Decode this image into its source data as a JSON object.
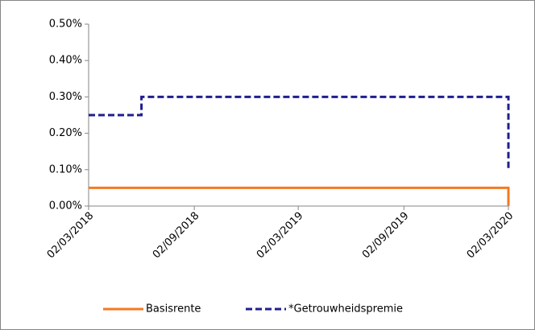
{
  "chart_data": {
    "type": "line",
    "xlim": [
      "02/03/2018",
      "02/03/2020"
    ],
    "xticks": [
      "02/03/2018",
      "02/09/2018",
      "02/03/2019",
      "02/09/2019",
      "02/03/2020"
    ],
    "ylim": [
      0,
      0.5
    ],
    "yticks": [
      {
        "value": 0,
        "label": "0.00%"
      },
      {
        "value": 0.1,
        "label": "0.10%"
      },
      {
        "value": 0.2,
        "label": "0.20%"
      },
      {
        "value": 0.3,
        "label": "0.30%"
      },
      {
        "value": 0.4,
        "label": "0.40%"
      },
      {
        "value": 0.5,
        "label": "0.50%"
      }
    ],
    "grid": false,
    "legend": "bottom",
    "series": [
      {
        "name": "Basisrente",
        "color": "#f47920",
        "dash": false,
        "x": [
          "02/03/2018",
          "02/03/2020",
          "02/03/2020"
        ],
        "values": [
          0.05,
          0.05,
          0
        ]
      },
      {
        "name": "*Getrouwheidspremie",
        "color": "#1f1f8f",
        "dash": true,
        "x": [
          "02/03/2018",
          "02/06/2018",
          "02/06/2018",
          "02/03/2020",
          "02/03/2020"
        ],
        "values": [
          0.25,
          0.25,
          0.3,
          0.3,
          0.1
        ]
      }
    ]
  }
}
